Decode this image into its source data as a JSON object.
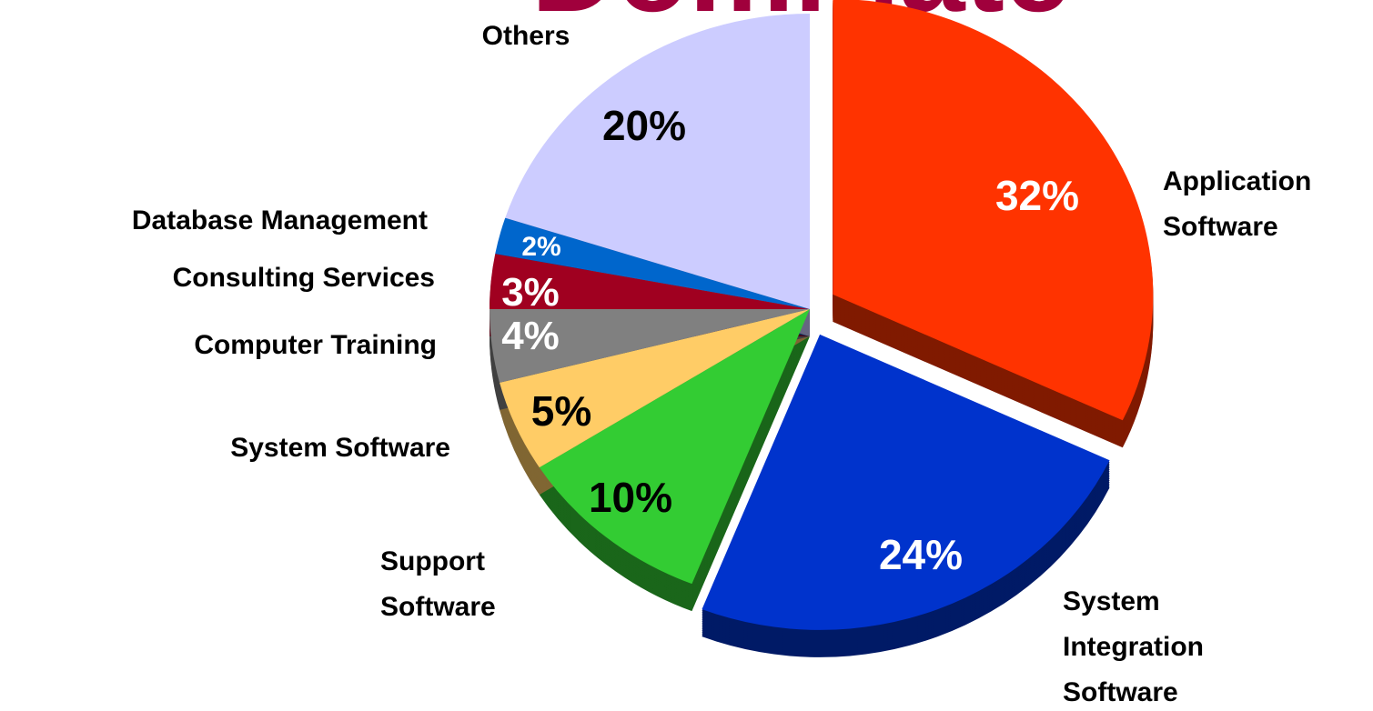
{
  "chart_data": {
    "type": "pie",
    "title": "Dominate",
    "categories": [
      "Application Software",
      "System Integration Software",
      "Support Software",
      "System Software",
      "Computer Training",
      "Consulting Services",
      "Database Management",
      "Others"
    ],
    "values": [
      32,
      24,
      10,
      5,
      4,
      3,
      2,
      20
    ],
    "value_labels": [
      "32%",
      "24%",
      "10%",
      "5%",
      "4%",
      "3%",
      "2%",
      "20%"
    ],
    "colors": [
      "#ff3300",
      "#0033cc",
      "#33cc33",
      "#ffcc66",
      "#808080",
      "#a00020",
      "#0066cc",
      "#ccccff"
    ]
  }
}
